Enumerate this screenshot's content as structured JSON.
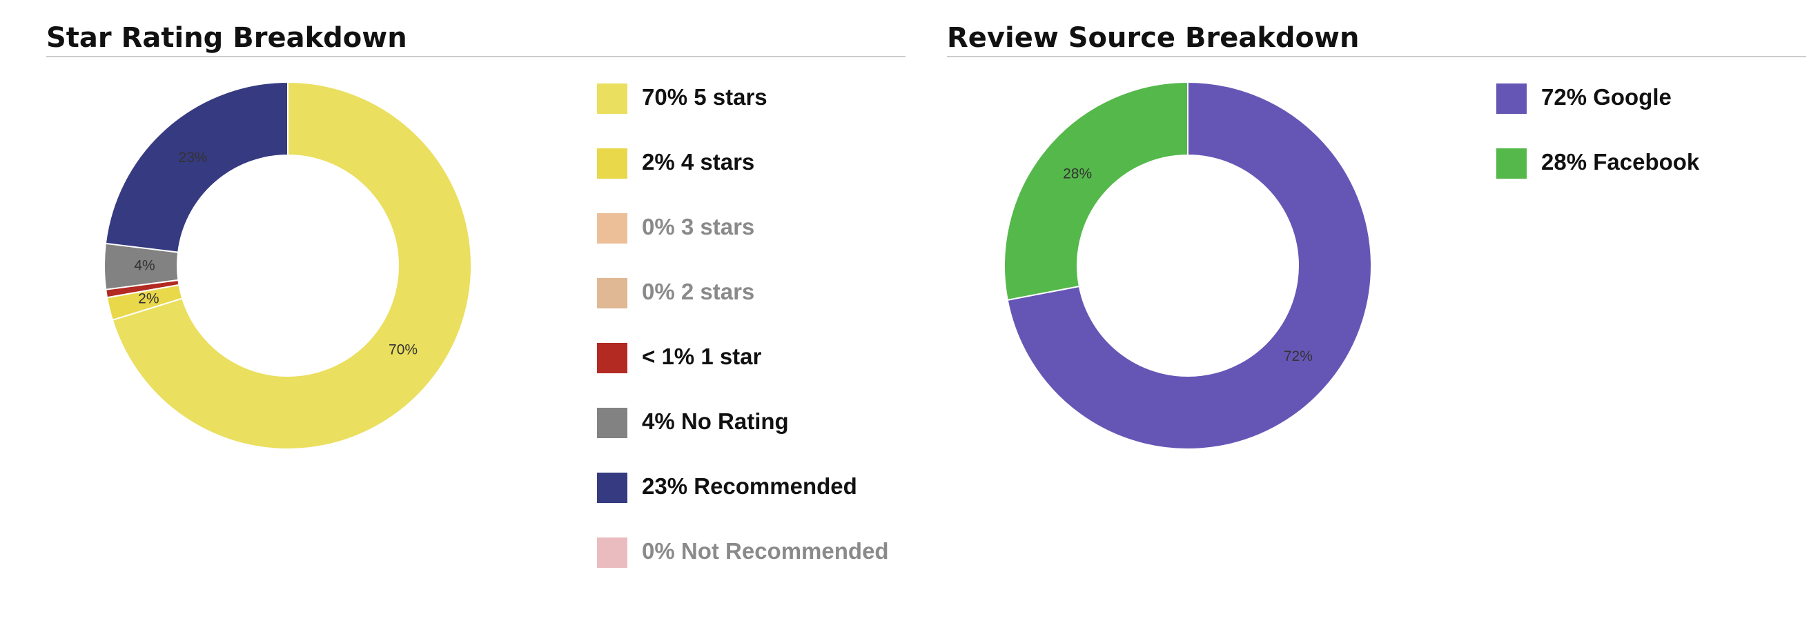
{
  "chart_data": [
    {
      "type": "donut",
      "title": "Star Rating Breakdown",
      "categories": [
        "5 stars",
        "4 stars",
        "3 stars",
        "2 stars",
        "1 star",
        "No Rating",
        "Recommended",
        "Not Recommended"
      ],
      "values": [
        70,
        2,
        0,
        0,
        0.7,
        4,
        23,
        0
      ],
      "value_labels": [
        "70%",
        "2%",
        "0%",
        "0%",
        "< 1%",
        "4%",
        "23%",
        "0%"
      ],
      "colors": [
        "#eadf5e",
        "#e8d84a",
        "#ecbf98",
        "#e0b894",
        "#b22a22",
        "#828282",
        "#363a80",
        "#ebbcbf"
      ]
    },
    {
      "type": "donut",
      "title": "Review Source Breakdown",
      "categories": [
        "Google",
        "Facebook"
      ],
      "values": [
        72,
        28
      ],
      "value_labels": [
        "72%",
        "28%"
      ],
      "colors": [
        "#6556b6",
        "#55b84b"
      ]
    }
  ]
}
